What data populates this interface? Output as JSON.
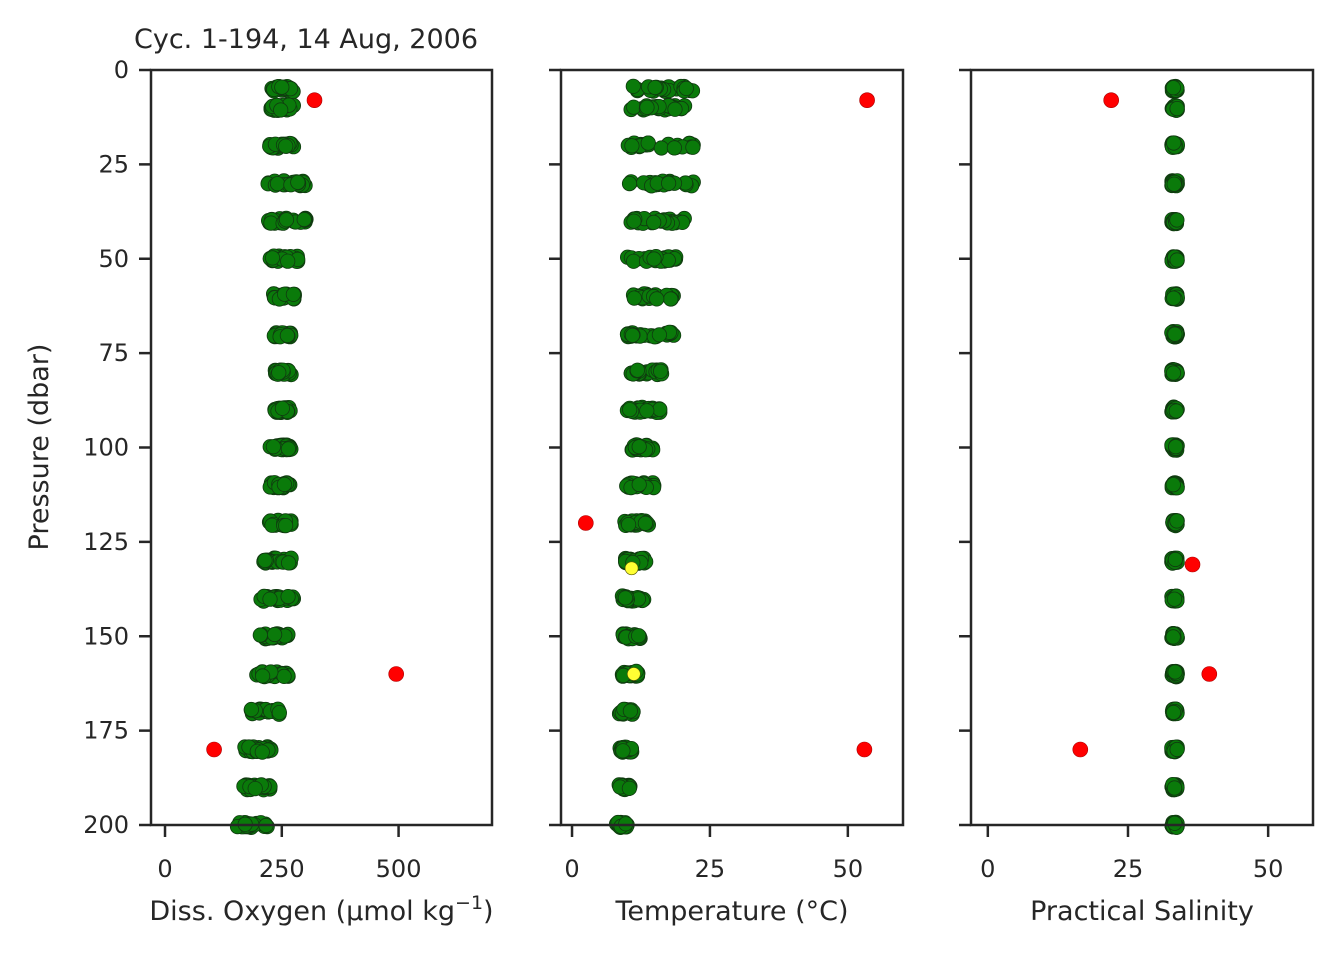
{
  "chart_data": {
    "type": "scatter",
    "title": "Cyc. 1-194, 14 Aug, 2006",
    "ylabel": "Pressure (dbar)",
    "ylim": [
      200,
      0
    ],
    "y_inverted": true,
    "yticks": [
      0,
      25,
      50,
      75,
      100,
      125,
      150,
      175,
      200
    ],
    "pressure_levels": [
      5,
      10,
      20,
      30,
      40,
      50,
      60,
      70,
      80,
      90,
      100,
      110,
      120,
      130,
      140,
      150,
      160,
      170,
      180,
      190,
      200
    ],
    "colors": {
      "good": "#0a7a0a",
      "outlier": "#ff0000",
      "probable": "#ffff33"
    },
    "legend": "none",
    "panels": [
      {
        "xlabel": "Diss. Oxygen (µmol kg",
        "xlabel_sup": "−1",
        "xlabel_end": ")",
        "xlim": [
          -30,
          700
        ],
        "xticks": [
          0,
          250,
          500
        ],
        "good_ranges": [
          [
            225,
            275
          ],
          [
            225,
            275
          ],
          [
            220,
            275
          ],
          [
            220,
            300
          ],
          [
            215,
            305
          ],
          [
            225,
            285
          ],
          [
            230,
            280
          ],
          [
            230,
            270
          ],
          [
            235,
            270
          ],
          [
            235,
            270
          ],
          [
            225,
            270
          ],
          [
            225,
            270
          ],
          [
            220,
            270
          ],
          [
            210,
            270
          ],
          [
            205,
            275
          ],
          [
            200,
            265
          ],
          [
            195,
            265
          ],
          [
            180,
            245
          ],
          [
            170,
            235
          ],
          [
            165,
            225
          ],
          [
            155,
            220
          ]
        ],
        "outliers": [
          [
            320,
            8
          ],
          [
            495,
            160
          ],
          [
            105,
            180
          ]
        ],
        "probable": []
      },
      {
        "xlabel": "Temperature (°C)",
        "xlabel_sup": "",
        "xlabel_end": "",
        "xlim": [
          -2,
          60
        ],
        "xticks": [
          0,
          25,
          50
        ],
        "good_ranges": [
          [
            10.5,
            22
          ],
          [
            10.5,
            22
          ],
          [
            10,
            22
          ],
          [
            10,
            22
          ],
          [
            10,
            20.5
          ],
          [
            10,
            19
          ],
          [
            10,
            18.5
          ],
          [
            10,
            18.5
          ],
          [
            10,
            16.5
          ],
          [
            9.5,
            16.5
          ],
          [
            9.5,
            15.5
          ],
          [
            9.5,
            15
          ],
          [
            9.5,
            14
          ],
          [
            9.5,
            13.5
          ],
          [
            9,
            13
          ],
          [
            9,
            12.5
          ],
          [
            9,
            12
          ],
          [
            8.5,
            11.5
          ],
          [
            8.5,
            11
          ],
          [
            8.5,
            10.5
          ],
          [
            8,
            10
          ]
        ],
        "outliers": [
          [
            53.5,
            8
          ],
          [
            2.5,
            120
          ],
          [
            53,
            180
          ]
        ],
        "probable": [
          [
            10.8,
            132
          ],
          [
            11.2,
            160
          ]
        ]
      },
      {
        "xlabel": "Practical Salinity",
        "xlabel_sup": "",
        "xlabel_end": "",
        "xlim": [
          -3,
          58
        ],
        "xticks": [
          0,
          25,
          50
        ],
        "good_ranges": [
          [
            32.8,
            33.8
          ],
          [
            32.8,
            33.8
          ],
          [
            32.8,
            33.8
          ],
          [
            32.8,
            33.8
          ],
          [
            32.8,
            33.8
          ],
          [
            32.8,
            33.8
          ],
          [
            32.8,
            33.8
          ],
          [
            32.8,
            33.8
          ],
          [
            32.8,
            33.8
          ],
          [
            32.8,
            33.8
          ],
          [
            32.8,
            33.8
          ],
          [
            32.8,
            33.8
          ],
          [
            32.8,
            33.8
          ],
          [
            32.8,
            33.8
          ],
          [
            32.8,
            33.8
          ],
          [
            32.8,
            33.8
          ],
          [
            32.8,
            33.8
          ],
          [
            32.8,
            33.8
          ],
          [
            32.8,
            33.8
          ],
          [
            32.8,
            33.8
          ],
          [
            32.8,
            33.8
          ]
        ],
        "outliers": [
          [
            22,
            8
          ],
          [
            36.5,
            131
          ],
          [
            39.5,
            160
          ],
          [
            16.5,
            180
          ]
        ],
        "probable": []
      }
    ]
  }
}
